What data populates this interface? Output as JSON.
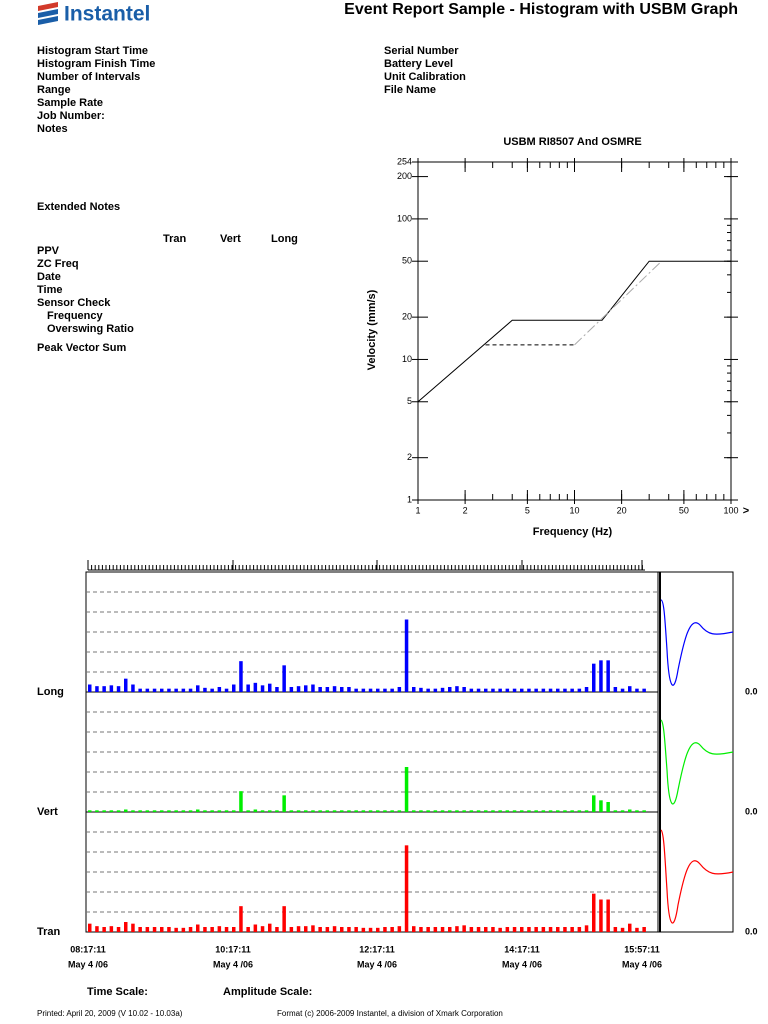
{
  "header": {
    "logo": "Instantel",
    "title": "Event Report Sample - Histogram with USBM Graph"
  },
  "fields_left": [
    "Histogram Start Time",
    "Histogram Finish Time",
    "Number of Intervals",
    "Range",
    "Sample Rate",
    "Job Number:",
    "Notes"
  ],
  "fields_right": [
    "Serial Number",
    "Battery Level",
    "Unit Calibration",
    "File Name"
  ],
  "extended_notes": "Extended Notes",
  "table": {
    "columns": [
      "Tran",
      "Vert",
      "Long"
    ],
    "rows": [
      "PPV",
      "ZC Freq",
      "Date",
      "Time",
      "Sensor Check",
      "Frequency",
      "Overswing Ratio",
      "Peak Vector Sum"
    ]
  },
  "usbm": {
    "type": "line",
    "log_x": true,
    "log_y": true,
    "title": "USBM RI8507 And OSMRE",
    "x_label": "Frequency (Hz)",
    "y_label": "Velocity (mm/s)",
    "x_more": ">",
    "xlim": [
      1,
      100
    ],
    "ylim": [
      1,
      254
    ],
    "xticks": [
      1,
      2,
      5,
      10,
      20,
      50,
      100
    ],
    "yticks": [
      1,
      2,
      5,
      10,
      20,
      50,
      100,
      200,
      254
    ],
    "series": [
      {
        "color": "#000000",
        "style": "solid",
        "x": [
          1,
          4,
          15,
          30,
          100
        ],
        "values": [
          5,
          19,
          19,
          50,
          50
        ]
      },
      {
        "color": "#000000",
        "style": "dashed",
        "x": [
          2.7,
          10
        ],
        "values": [
          12.7,
          12.7
        ]
      },
      {
        "color": "#aaaaaa",
        "style": "dashdot",
        "x": [
          10,
          36
        ],
        "values": [
          12.7,
          50
        ]
      }
    ]
  },
  "histogram": {
    "type": "bar",
    "ylim": [
      0,
      6
    ],
    "zero_label": "0.0",
    "channels": [
      {
        "name": "Long",
        "color": "#0000ff",
        "values": [
          0.45,
          0.35,
          0.35,
          0.4,
          0.35,
          0.8,
          0.45,
          0.2,
          0.2,
          0.2,
          0.2,
          0.2,
          0.2,
          0.2,
          0.2,
          0.4,
          0.25,
          0.2,
          0.3,
          0.2,
          0.45,
          1.85,
          0.45,
          0.55,
          0.4,
          0.5,
          0.3,
          1.6,
          0.3,
          0.35,
          0.4,
          0.45,
          0.3,
          0.3,
          0.35,
          0.3,
          0.3,
          0.2,
          0.2,
          0.2,
          0.2,
          0.2,
          0.2,
          0.3,
          4.35,
          0.3,
          0.25,
          0.2,
          0.2,
          0.25,
          0.3,
          0.35,
          0.3,
          0.2,
          0.2,
          0.2,
          0.2,
          0.2,
          0.2,
          0.2,
          0.2,
          0.2,
          0.2,
          0.2,
          0.2,
          0.2,
          0.2,
          0.2,
          0.2,
          0.3,
          1.7,
          1.9,
          1.9,
          0.3,
          0.2,
          0.35,
          0.2,
          0.2
        ]
      },
      {
        "name": "Vert",
        "color": "#00ee00",
        "values": [
          0.1,
          0.1,
          0.1,
          0.1,
          0.1,
          0.15,
          0.1,
          0.1,
          0.1,
          0.1,
          0.1,
          0.1,
          0.1,
          0.1,
          0.1,
          0.15,
          0.1,
          0.1,
          0.1,
          0.1,
          0.1,
          1.25,
          0.1,
          0.15,
          0.1,
          0.1,
          0.1,
          1.0,
          0.1,
          0.1,
          0.1,
          0.1,
          0.1,
          0.1,
          0.1,
          0.1,
          0.1,
          0.1,
          0.1,
          0.1,
          0.1,
          0.1,
          0.1,
          0.1,
          2.7,
          0.1,
          0.1,
          0.1,
          0.1,
          0.1,
          0.1,
          0.1,
          0.1,
          0.1,
          0.1,
          0.1,
          0.1,
          0.1,
          0.1,
          0.1,
          0.1,
          0.1,
          0.1,
          0.1,
          0.1,
          0.1,
          0.1,
          0.1,
          0.1,
          0.1,
          1.0,
          0.7,
          0.6,
          0.1,
          0.1,
          0.15,
          0.1,
          0.1
        ]
      },
      {
        "name": "Tran",
        "color": "#ff0000",
        "values": [
          0.5,
          0.35,
          0.3,
          0.35,
          0.3,
          0.6,
          0.5,
          0.3,
          0.3,
          0.3,
          0.3,
          0.3,
          0.25,
          0.25,
          0.3,
          0.45,
          0.3,
          0.3,
          0.35,
          0.3,
          0.3,
          1.55,
          0.3,
          0.45,
          0.35,
          0.5,
          0.3,
          1.55,
          0.3,
          0.35,
          0.35,
          0.4,
          0.3,
          0.3,
          0.35,
          0.3,
          0.3,
          0.3,
          0.25,
          0.25,
          0.25,
          0.3,
          0.3,
          0.35,
          5.2,
          0.35,
          0.3,
          0.3,
          0.3,
          0.3,
          0.3,
          0.35,
          0.4,
          0.3,
          0.3,
          0.3,
          0.3,
          0.25,
          0.3,
          0.3,
          0.3,
          0.3,
          0.3,
          0.3,
          0.3,
          0.3,
          0.3,
          0.3,
          0.3,
          0.4,
          2.3,
          1.95,
          1.95,
          0.3,
          0.25,
          0.5,
          0.25,
          0.3
        ]
      }
    ],
    "time_labels": [
      {
        "time": "08:17:11",
        "date": "May 4 /06"
      },
      {
        "time": "10:17:11",
        "date": "May 4 /06"
      },
      {
        "time": "12:17:11",
        "date": "May 4 /06"
      },
      {
        "time": "14:17:11",
        "date": "May 4 /06"
      },
      {
        "time": "15:57:11",
        "date": "May 4 /06"
      }
    ],
    "time_scale": "Time Scale:",
    "amplitude_scale": "Amplitude Scale:"
  },
  "footer": {
    "printed": "Printed: April 20, 2009 (V 10.02 - 10.03a)",
    "format": "Format (c) 2006-2009 Instantel, a division of Xmark Corporation"
  }
}
